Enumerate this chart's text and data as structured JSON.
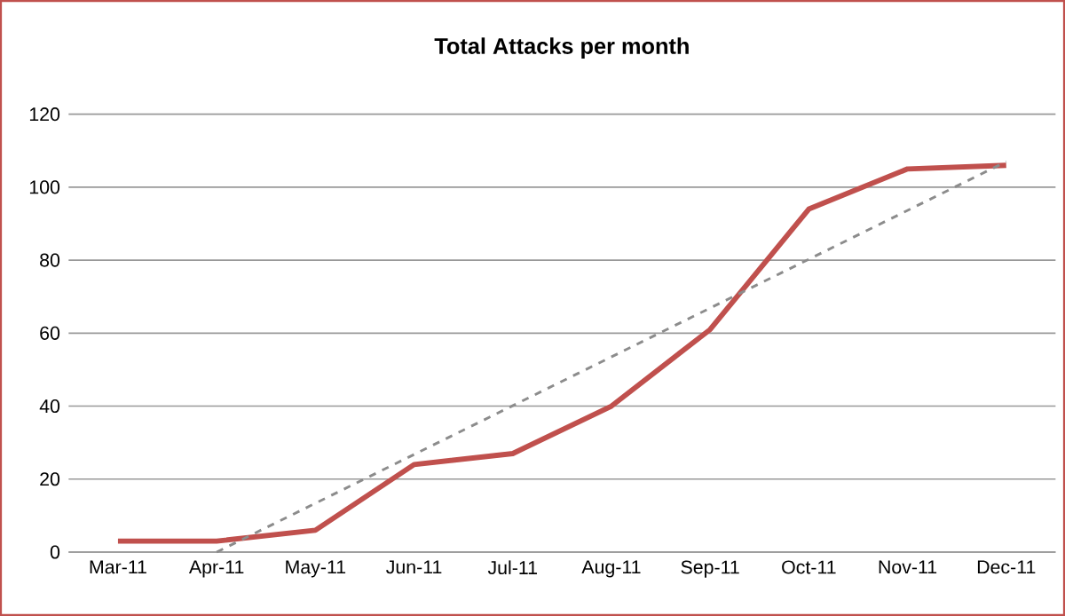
{
  "chart_data": {
    "type": "line",
    "title": "Total Attacks per month",
    "categories": [
      "Mar-11",
      "Apr-11",
      "May-11",
      "Jun-11",
      "Jul-11",
      "Aug-11",
      "Sep-11",
      "Oct-11",
      "Nov-11",
      "Dec-11"
    ],
    "series": [
      {
        "color": "#c0504d",
        "values": [
          3,
          3,
          6,
          24,
          27,
          40,
          61,
          94,
          105,
          106
        ]
      },
      {
        "type": "line",
        "color": "#8c8c8c",
        "line_style": "dashed",
        "values": [
          null,
          0,
          null,
          null,
          null,
          null,
          null,
          null,
          null,
          107
        ]
      }
    ],
    "ylim": [
      0,
      120
    ],
    "yticks": [
      0,
      20,
      40,
      60,
      80,
      100,
      120
    ],
    "grid": "y",
    "marker": "none"
  }
}
